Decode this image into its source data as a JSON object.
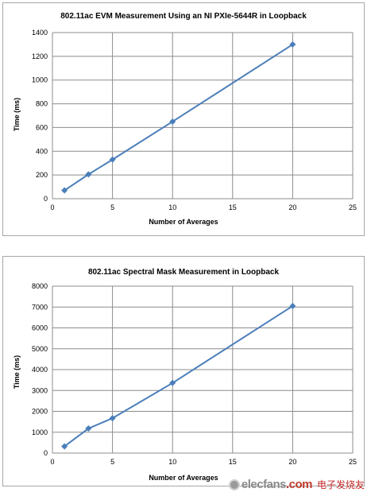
{
  "chart_data": [
    {
      "type": "line",
      "title": "802.11ac EVM Measurement Using an NI PXIe-5644R in Loopback",
      "xlabel": "Number of Averages",
      "ylabel": "Time (ms)",
      "xlim": [
        0,
        25
      ],
      "ylim": [
        0,
        1400
      ],
      "xticks": [
        0,
        5,
        10,
        15,
        20,
        25
      ],
      "yticks": [
        0,
        200,
        400,
        600,
        800,
        1000,
        1200,
        1400
      ],
      "grid": true,
      "legend": "none",
      "series": [
        {
          "x": [
            1,
            3,
            5,
            10,
            20
          ],
          "y": [
            70,
            205,
            330,
            650,
            1300
          ],
          "color": "#4a7ebb",
          "marker": "diamond"
        }
      ]
    },
    {
      "type": "line",
      "title": "802.11ac Spectral Mask Measurement in Loopback",
      "xlabel": "Number of Averages",
      "ylabel": "Time (ms)",
      "xlim": [
        0,
        25
      ],
      "ylim": [
        0,
        8000
      ],
      "xticks": [
        0,
        5,
        10,
        15,
        20,
        25
      ],
      "yticks": [
        0,
        1000,
        2000,
        3000,
        4000,
        5000,
        6000,
        7000,
        8000
      ],
      "grid": true,
      "legend": "none",
      "series": [
        {
          "x": [
            1,
            3,
            5,
            10,
            20
          ],
          "y": [
            320,
            1180,
            1670,
            3360,
            7050
          ],
          "color": "#4a7ebb",
          "marker": "diamond"
        }
      ]
    }
  ],
  "watermark": {
    "text_main": "elecfans",
    "text_domain": ".com",
    "text_cn": "电子发烧友"
  }
}
